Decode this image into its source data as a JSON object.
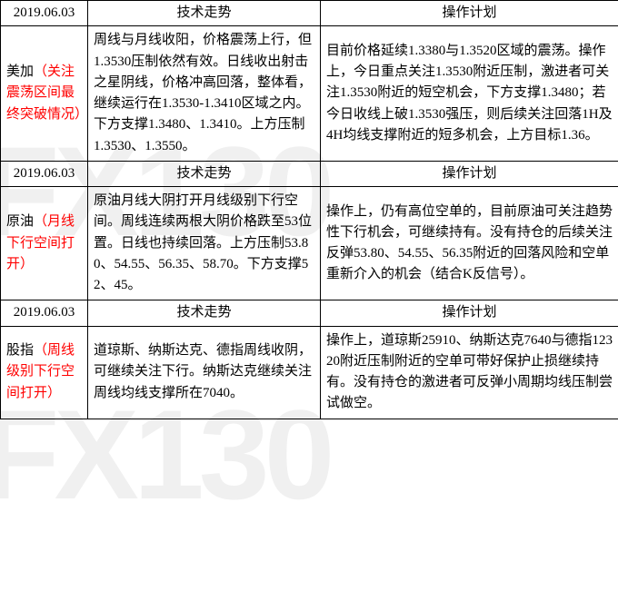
{
  "watermark": "FX130",
  "colors": {
    "text": "#000000",
    "highlight": "#ff0000",
    "border": "#000000",
    "background": "#ffffff",
    "watermark": "rgba(0,0,0,0.06)"
  },
  "headers": {
    "trend": "技术走势",
    "plan": "操作计划"
  },
  "sections": [
    {
      "date": "2019.06.03",
      "label_main": "美加",
      "label_note": "（关注震荡区间最终突破情况）",
      "trend": "周线与月线收阳，价格震荡上行，但1.3530压制依然有效。日线收出射击之星阴线，价格冲高回落，整体看，继续运行在1.3530-1.3410区域之内。下方支撑1.3480、1.3410。上方压制1.3530、1.3550。",
      "plan": "目前价格延续1.3380与1.3520区域的震荡。操作上，今日重点关注1.3530附近压制，激进者可关注1.3530附近的短空机会，下方支撑1.3480；若今日收线上破1.3530强压，则后续关注回落1H及4H均线支撑附近的短多机会，上方目标1.36。"
    },
    {
      "date": "2019.06.03",
      "label_main": "原油",
      "label_note": "（月线下行空间打开）",
      "trend": "原油月线大阴打开月线级别下行空间。周线连续两根大阴价格跌至53位置。日线也持续回落。上方压制53.80、54.55、56.35、58.70。下方支撑52、45。",
      "plan": "操作上，仍有高位空单的，目前原油可关注趋势性下行机会，可继续持有。没有持仓的后续关注反弹53.80、54.55、56.35附近的回落风险和空单重新介入的机会（结合K反信号）。"
    },
    {
      "date": "2019.06.03",
      "label_main": "股指",
      "label_note": "（周线级别下行空间打开）",
      "trend": "道琼斯、纳斯达克、德指周线收阴，可继续关注下行。纳斯达克继续关注周线均线支撑所在7040。",
      "plan": "操作上，道琼斯25910、纳斯达克7640与德指12320附近压制附近的空单可带好保护止损继续持有。没有持仓的激进者可反弹小周期均线压制尝试做空。"
    }
  ]
}
